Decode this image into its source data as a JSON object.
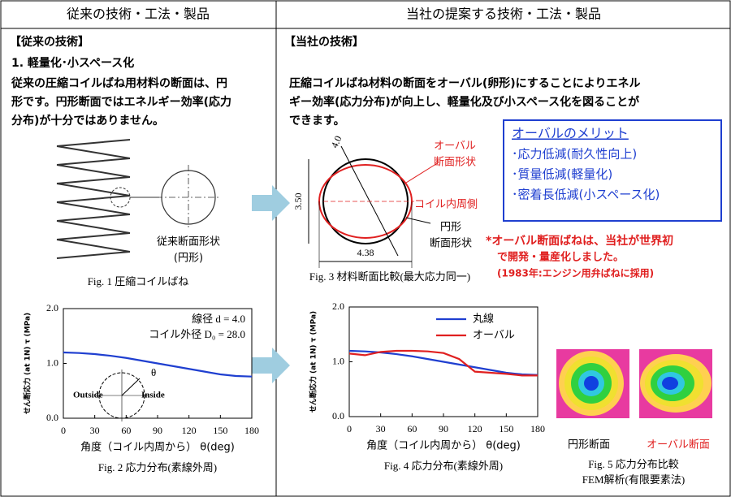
{
  "left": {
    "header": "従来の技術・工法・製品",
    "section": "【従来の技術】",
    "item": "1. 軽量化･小スペース化",
    "text": [
      "従来の圧縮コイルばね用材料の断面は、円",
      "形です。円形断面ではエネルギー効率(応力",
      "分布)が十分ではありません。"
    ],
    "fig1": {
      "label": "従来断面形状",
      "sublabel": "(円形)",
      "caption": "Fig. 1  圧縮コイルばね"
    }
  },
  "right": {
    "header": "当社の提案する技術・工法・製品",
    "section": "【当社の技術】",
    "text": [
      "圧縮コイルばね材料の断面をオーバル(卵形)にすることによりエネル",
      "ギー効率(応力分布)が向上し、軽量化及び小スペース化を図ることが",
      "できます。"
    ],
    "fig3": {
      "dim_diameter": "4.0",
      "dim_height": "3.50",
      "dim_width": "4.38",
      "oval_label": [
        "オーバル",
        "断面形状"
      ],
      "inner_label": "コイル内周側",
      "round_label": [
        "円形",
        "断面形状"
      ],
      "caption": "Fig. 3  材料断面比較(最大応力同一)"
    },
    "merits": {
      "title": "オーバルのメリット",
      "items": [
        "･応力低減(耐久性向上)",
        "･質量低減(軽量化)",
        "･密着長低減(小スペース化)"
      ]
    },
    "note": [
      "*オーバル断面ばねは、当社が世界初",
      "で開発・量産化しました。",
      "(1983年:エンジン用弁ばねに採用)"
    ],
    "fig5": {
      "round": "円形断面",
      "oval": "オーバル断面",
      "caption": [
        "Fig. 5  応力分布比較",
        "FEM解析(有限要素法)"
      ]
    }
  },
  "chart_data": [
    {
      "type": "line",
      "caption": "Fig. 2  応力分布(素線外周)",
      "x_label": "角度（コイル内周から） θ(deg)",
      "y_label": "せん断応力 (at 1N) τ (MPa)",
      "x": [
        0,
        15,
        30,
        45,
        60,
        75,
        90,
        105,
        120,
        135,
        150,
        165,
        180
      ],
      "series": [
        {
          "name": null,
          "color": "#1f3fd0",
          "values": [
            1.2,
            1.19,
            1.17,
            1.14,
            1.1,
            1.05,
            1.0,
            0.95,
            0.9,
            0.85,
            0.8,
            0.77,
            0.76
          ]
        }
      ],
      "xlim": [
        0,
        180
      ],
      "xticks": [
        0,
        30,
        60,
        90,
        120,
        150,
        180
      ],
      "ylim": [
        0,
        2
      ],
      "yticks": [
        {
          "value": 0,
          "label": "0.0"
        },
        {
          "value": 1,
          "label": "1.0"
        },
        {
          "value": 2,
          "label": "2.0"
        }
      ],
      "annotations": [
        "線径 d = 4.0",
        "コイル外径 D₀ = 28.0",
        "Outside",
        "Inside",
        "θ"
      ]
    },
    {
      "type": "line",
      "caption": "Fig. 4  応力分布(素線外周)",
      "x_label": "角度（コイル内周から） θ(deg)",
      "y_label": "せん断応力 (at 1N) τ (MPa)",
      "x": [
        0,
        15,
        30,
        45,
        60,
        75,
        90,
        105,
        120,
        135,
        150,
        165,
        180
      ],
      "series": [
        {
          "name": "丸線",
          "color": "#1f3fd0",
          "values": [
            1.2,
            1.19,
            1.17,
            1.14,
            1.1,
            1.05,
            1.0,
            0.95,
            0.9,
            0.85,
            0.8,
            0.77,
            0.76
          ]
        },
        {
          "name": "オーバル",
          "color": "#e02020",
          "values": [
            1.15,
            1.12,
            1.18,
            1.2,
            1.2,
            1.19,
            1.16,
            1.05,
            0.82,
            0.8,
            0.78,
            0.75,
            0.75
          ]
        }
      ],
      "xlim": [
        0,
        180
      ],
      "xticks": [
        0,
        30,
        60,
        90,
        120,
        150,
        180
      ],
      "ylim": [
        0,
        2
      ],
      "yticks": [
        {
          "value": 0,
          "label": "0.0"
        },
        {
          "value": 1,
          "label": "1.0"
        },
        {
          "value": 2,
          "label": "2.0"
        }
      ],
      "legend": "upper right"
    }
  ]
}
